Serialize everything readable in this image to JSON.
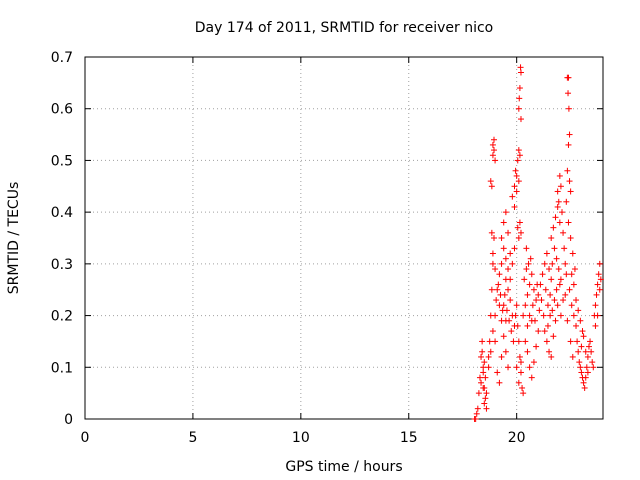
{
  "chart_data": {
    "type": "scatter",
    "title": "Day 174 of 2011, SRMTID for receiver nico",
    "xlabel": "GPS time / hours",
    "ylabel": "SRMTID / TECUs",
    "xlim": [
      0,
      24
    ],
    "ylim": [
      0,
      0.7
    ],
    "xticks": [
      0,
      5,
      10,
      15,
      20
    ],
    "xtick_labels": [
      "0",
      "5",
      "10",
      "15",
      "20"
    ],
    "yticks": [
      0,
      0.1,
      0.2,
      0.3,
      0.4,
      0.5,
      0.6,
      0.7
    ],
    "ytick_labels": [
      "0",
      "0.1",
      "0.2",
      "0.3",
      "0.4",
      "0.5",
      "0.6",
      "0.7"
    ],
    "grid": true,
    "marker": "+",
    "marker_color": "#ff0000",
    "series": [
      {
        "name": "SRMTID",
        "points": [
          [
            18.05,
            0.0
          ],
          [
            18.1,
            0.0
          ],
          [
            18.15,
            0.01
          ],
          [
            18.2,
            0.02
          ],
          [
            18.25,
            0.05
          ],
          [
            18.3,
            0.08
          ],
          [
            18.35,
            0.12
          ],
          [
            18.4,
            0.15
          ],
          [
            18.45,
            0.1
          ],
          [
            18.5,
            0.06
          ],
          [
            18.55,
            0.04
          ],
          [
            18.6,
            0.02
          ],
          [
            18.35,
            0.07
          ],
          [
            18.45,
            0.09
          ],
          [
            18.5,
            0.11
          ],
          [
            18.4,
            0.13
          ],
          [
            18.55,
            0.08
          ],
          [
            18.6,
            0.05
          ],
          [
            18.5,
            0.03
          ],
          [
            18.45,
            0.06
          ],
          [
            18.7,
            0.1
          ],
          [
            18.75,
            0.15
          ],
          [
            18.8,
            0.2
          ],
          [
            18.85,
            0.25
          ],
          [
            18.9,
            0.3
          ],
          [
            18.95,
            0.35
          ],
          [
            19.0,
            0.2
          ],
          [
            18.9,
            0.17
          ],
          [
            18.8,
            0.13
          ],
          [
            18.7,
            0.12
          ],
          [
            18.8,
            0.46
          ],
          [
            18.85,
            0.45
          ],
          [
            18.9,
            0.51
          ],
          [
            18.95,
            0.52
          ],
          [
            18.9,
            0.53
          ],
          [
            18.95,
            0.54
          ],
          [
            19.0,
            0.5
          ],
          [
            18.85,
            0.36
          ],
          [
            18.9,
            0.32
          ],
          [
            19.0,
            0.29
          ],
          [
            19.1,
            0.25
          ],
          [
            19.2,
            0.22
          ],
          [
            19.3,
            0.19
          ],
          [
            19.4,
            0.16
          ],
          [
            19.5,
            0.13
          ],
          [
            19.6,
            0.1
          ],
          [
            19.1,
            0.09
          ],
          [
            19.2,
            0.07
          ],
          [
            19.3,
            0.12
          ],
          [
            19.0,
            0.15
          ],
          [
            19.2,
            0.28
          ],
          [
            19.3,
            0.3
          ],
          [
            19.4,
            0.33
          ],
          [
            19.5,
            0.27
          ],
          [
            19.6,
            0.25
          ],
          [
            19.7,
            0.23
          ],
          [
            19.8,
            0.2
          ],
          [
            19.9,
            0.18
          ],
          [
            19.4,
            0.22
          ],
          [
            19.5,
            0.19
          ],
          [
            19.3,
            0.35
          ],
          [
            19.4,
            0.38
          ],
          [
            19.5,
            0.4
          ],
          [
            19.6,
            0.36
          ],
          [
            19.7,
            0.32
          ],
          [
            19.5,
            0.31
          ],
          [
            19.6,
            0.29
          ],
          [
            19.7,
            0.27
          ],
          [
            19.8,
            0.3
          ],
          [
            19.9,
            0.33
          ],
          [
            19.8,
            0.43
          ],
          [
            19.9,
            0.45
          ],
          [
            19.95,
            0.48
          ],
          [
            20.0,
            0.47
          ],
          [
            20.05,
            0.5
          ],
          [
            20.1,
            0.52
          ],
          [
            20.15,
            0.51
          ],
          [
            20.0,
            0.44
          ],
          [
            19.9,
            0.41
          ],
          [
            20.1,
            0.46
          ],
          [
            20.1,
            0.6
          ],
          [
            20.15,
            0.64
          ],
          [
            20.2,
            0.67
          ],
          [
            20.18,
            0.68
          ],
          [
            20.12,
            0.62
          ],
          [
            20.2,
            0.58
          ],
          [
            20.15,
            0.38
          ],
          [
            20.1,
            0.35
          ],
          [
            20.05,
            0.37
          ],
          [
            20.2,
            0.36
          ],
          [
            20.0,
            0.22
          ],
          [
            20.05,
            0.18
          ],
          [
            20.1,
            0.15
          ],
          [
            20.15,
            0.12
          ],
          [
            20.2,
            0.09
          ],
          [
            20.25,
            0.06
          ],
          [
            20.3,
            0.05
          ],
          [
            20.0,
            0.1
          ],
          [
            20.1,
            0.07
          ],
          [
            20.2,
            0.11
          ],
          [
            20.3,
            0.2
          ],
          [
            20.4,
            0.22
          ],
          [
            20.5,
            0.24
          ],
          [
            20.6,
            0.26
          ],
          [
            20.7,
            0.28
          ],
          [
            20.8,
            0.25
          ],
          [
            20.9,
            0.23
          ],
          [
            20.35,
            0.27
          ],
          [
            20.45,
            0.29
          ],
          [
            20.55,
            0.3
          ],
          [
            20.4,
            0.15
          ],
          [
            20.5,
            0.13
          ],
          [
            20.6,
            0.1
          ],
          [
            20.7,
            0.08
          ],
          [
            20.8,
            0.11
          ],
          [
            20.9,
            0.14
          ],
          [
            21.0,
            0.17
          ],
          [
            20.5,
            0.18
          ],
          [
            20.6,
            0.2
          ],
          [
            20.7,
            0.19
          ],
          [
            21.0,
            0.24
          ],
          [
            21.1,
            0.26
          ],
          [
            21.2,
            0.28
          ],
          [
            21.3,
            0.3
          ],
          [
            21.4,
            0.32
          ],
          [
            21.5,
            0.29
          ],
          [
            21.6,
            0.27
          ],
          [
            21.05,
            0.21
          ],
          [
            21.15,
            0.23
          ],
          [
            21.25,
            0.2
          ],
          [
            21.3,
            0.17
          ],
          [
            21.4,
            0.15
          ],
          [
            21.5,
            0.13
          ],
          [
            21.6,
            0.12
          ],
          [
            21.7,
            0.16
          ],
          [
            21.8,
            0.19
          ],
          [
            21.9,
            0.22
          ],
          [
            21.35,
            0.25
          ],
          [
            21.45,
            0.22
          ],
          [
            21.55,
            0.2
          ],
          [
            21.6,
            0.35
          ],
          [
            21.7,
            0.37
          ],
          [
            21.8,
            0.39
          ],
          [
            21.9,
            0.41
          ],
          [
            22.0,
            0.38
          ],
          [
            21.75,
            0.33
          ],
          [
            21.85,
            0.31
          ],
          [
            21.95,
            0.29
          ],
          [
            22.05,
            0.27
          ],
          [
            21.65,
            0.3
          ],
          [
            21.9,
            0.44
          ],
          [
            22.0,
            0.47
          ],
          [
            22.05,
            0.45
          ],
          [
            21.95,
            0.42
          ],
          [
            22.1,
            0.4
          ],
          [
            22.15,
            0.36
          ],
          [
            22.2,
            0.33
          ],
          [
            22.25,
            0.3
          ],
          [
            22.3,
            0.28
          ],
          [
            22.0,
            0.26
          ],
          [
            22.35,
            0.66
          ],
          [
            22.4,
            0.66
          ],
          [
            22.38,
            0.63
          ],
          [
            22.42,
            0.6
          ],
          [
            22.45,
            0.55
          ],
          [
            22.4,
            0.53
          ],
          [
            22.35,
            0.48
          ],
          [
            22.45,
            0.46
          ],
          [
            22.5,
            0.44
          ],
          [
            22.3,
            0.42
          ],
          [
            22.4,
            0.38
          ],
          [
            22.5,
            0.35
          ],
          [
            22.6,
            0.32
          ],
          [
            22.7,
            0.29
          ],
          [
            22.45,
            0.25
          ],
          [
            22.55,
            0.22
          ],
          [
            22.65,
            0.2
          ],
          [
            22.75,
            0.18
          ],
          [
            22.5,
            0.15
          ],
          [
            22.6,
            0.12
          ],
          [
            22.8,
            0.15
          ],
          [
            22.85,
            0.13
          ],
          [
            22.9,
            0.11
          ],
          [
            22.95,
            0.1
          ],
          [
            23.0,
            0.09
          ],
          [
            23.05,
            0.08
          ],
          [
            23.1,
            0.07
          ],
          [
            23.15,
            0.06
          ],
          [
            23.2,
            0.08
          ],
          [
            23.25,
            0.1
          ],
          [
            23.3,
            0.12
          ],
          [
            23.35,
            0.14
          ],
          [
            23.4,
            0.15
          ],
          [
            23.45,
            0.13
          ],
          [
            23.5,
            0.11
          ],
          [
            23.55,
            0.1
          ],
          [
            23.0,
            0.14
          ],
          [
            23.1,
            0.16
          ],
          [
            23.2,
            0.13
          ],
          [
            23.3,
            0.09
          ],
          [
            23.6,
            0.2
          ],
          [
            23.65,
            0.22
          ],
          [
            23.7,
            0.24
          ],
          [
            23.75,
            0.26
          ],
          [
            23.8,
            0.28
          ],
          [
            23.85,
            0.3
          ],
          [
            23.9,
            0.27
          ],
          [
            23.65,
            0.18
          ],
          [
            23.75,
            0.2
          ],
          [
            23.85,
            0.25
          ],
          [
            19.05,
            0.23
          ],
          [
            19.15,
            0.26
          ],
          [
            19.25,
            0.24
          ],
          [
            19.35,
            0.21
          ],
          [
            19.45,
            0.24
          ],
          [
            19.55,
            0.21
          ],
          [
            19.65,
            0.19
          ],
          [
            19.75,
            0.17
          ],
          [
            19.85,
            0.15
          ],
          [
            19.95,
            0.2
          ],
          [
            20.45,
            0.33
          ],
          [
            20.65,
            0.31
          ],
          [
            20.75,
            0.22
          ],
          [
            20.85,
            0.19
          ],
          [
            20.95,
            0.26
          ],
          [
            21.45,
            0.18
          ],
          [
            21.55,
            0.24
          ],
          [
            21.65,
            0.21
          ],
          [
            21.75,
            0.23
          ],
          [
            21.85,
            0.25
          ],
          [
            22.05,
            0.2
          ],
          [
            22.15,
            0.23
          ],
          [
            22.25,
            0.24
          ],
          [
            22.35,
            0.19
          ],
          [
            22.55,
            0.28
          ],
          [
            22.65,
            0.26
          ],
          [
            22.75,
            0.23
          ],
          [
            22.85,
            0.21
          ],
          [
            22.95,
            0.19
          ],
          [
            23.05,
            0.17
          ]
        ]
      }
    ]
  }
}
